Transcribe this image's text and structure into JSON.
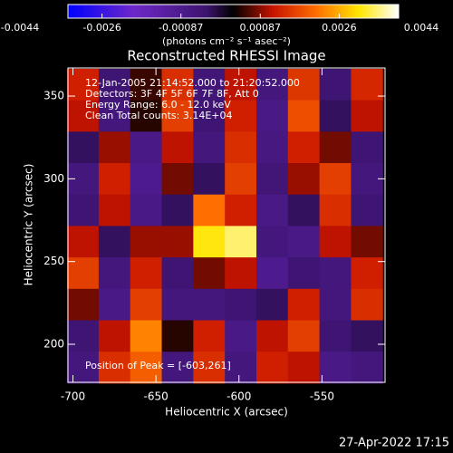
{
  "chart_data": {
    "type": "heatmap",
    "title": "Reconstructed RHESSI Image",
    "colorbar_label": "(photons cm⁻² s⁻¹ asec⁻²)",
    "clim": [
      -0.0044,
      0.0044
    ],
    "cticks": [
      -0.0044,
      -0.0026,
      -0.00087,
      0.00087,
      0.0026,
      0.0044
    ],
    "x_label": "Heliocentric X (arcsec)",
    "y_label": "Heliocentric Y (arcsec)",
    "xlim": [
      -703,
      -512
    ],
    "ylim": [
      177,
      367
    ],
    "xticks": [
      -700,
      -650,
      -600,
      -550
    ],
    "yticks": [
      200,
      250,
      300,
      350
    ],
    "annotations": [
      "12-Jan-2005 21:14:52.000 to 21:20:52.000",
      "Detectors: 3F 4F 5F 6F 7F 8F, Att 0",
      "Energy Range: 6.0 - 12.0 keV",
      "Clean    Total counts: 3.14E+04"
    ],
    "peak_label": "Position of Peak = [-603,261]",
    "timestamp": "27-Apr-2022 17:15",
    "x": [
      -694,
      -675,
      -656,
      -637,
      -618,
      -599,
      -580,
      -561,
      -542,
      -523
    ],
    "y": [
      357,
      338,
      319,
      300,
      281,
      262,
      243,
      224,
      205,
      186
    ],
    "z": [
      [
        0.0012,
        -0.0008,
        0.0003,
        0.0014,
        -0.0009,
        0.001,
        -0.001,
        0.0015,
        -0.0008,
        0.0013
      ],
      [
        0.001,
        -0.001,
        0.0002,
        0.0016,
        -0.0008,
        0.0012,
        -0.0012,
        0.0018,
        -0.0006,
        0.001
      ],
      [
        -0.0006,
        0.0008,
        -0.0012,
        0.001,
        -0.001,
        0.0014,
        -0.0011,
        0.0012,
        0.0006,
        -0.0008
      ],
      [
        -0.001,
        0.0012,
        -0.0014,
        0.0006,
        -0.0006,
        0.0016,
        -0.0009,
        0.0008,
        0.0016,
        -0.001
      ],
      [
        -0.0008,
        0.001,
        -0.0012,
        -0.0006,
        0.0022,
        0.0012,
        -0.0012,
        -0.0006,
        0.0014,
        -0.0008
      ],
      [
        0.001,
        -0.0006,
        0.0008,
        0.0008,
        0.0034,
        0.0038,
        -0.001,
        -0.0012,
        0.001,
        0.0006
      ],
      [
        0.0016,
        -0.001,
        0.0012,
        -0.0008,
        0.0006,
        0.001,
        -0.0014,
        -0.0008,
        -0.001,
        0.0012
      ],
      [
        0.0006,
        -0.0012,
        0.0016,
        -0.001,
        -0.001,
        -0.0008,
        -0.0006,
        0.0012,
        -0.001,
        0.0014
      ],
      [
        -0.0008,
        0.001,
        0.0024,
        0.0002,
        0.0012,
        -0.0012,
        0.001,
        0.0016,
        -0.0008,
        -0.0006
      ],
      [
        -0.001,
        0.0014,
        0.002,
        -0.001,
        0.0014,
        -0.001,
        0.0012,
        0.001,
        -0.0012,
        -0.001
      ]
    ]
  }
}
